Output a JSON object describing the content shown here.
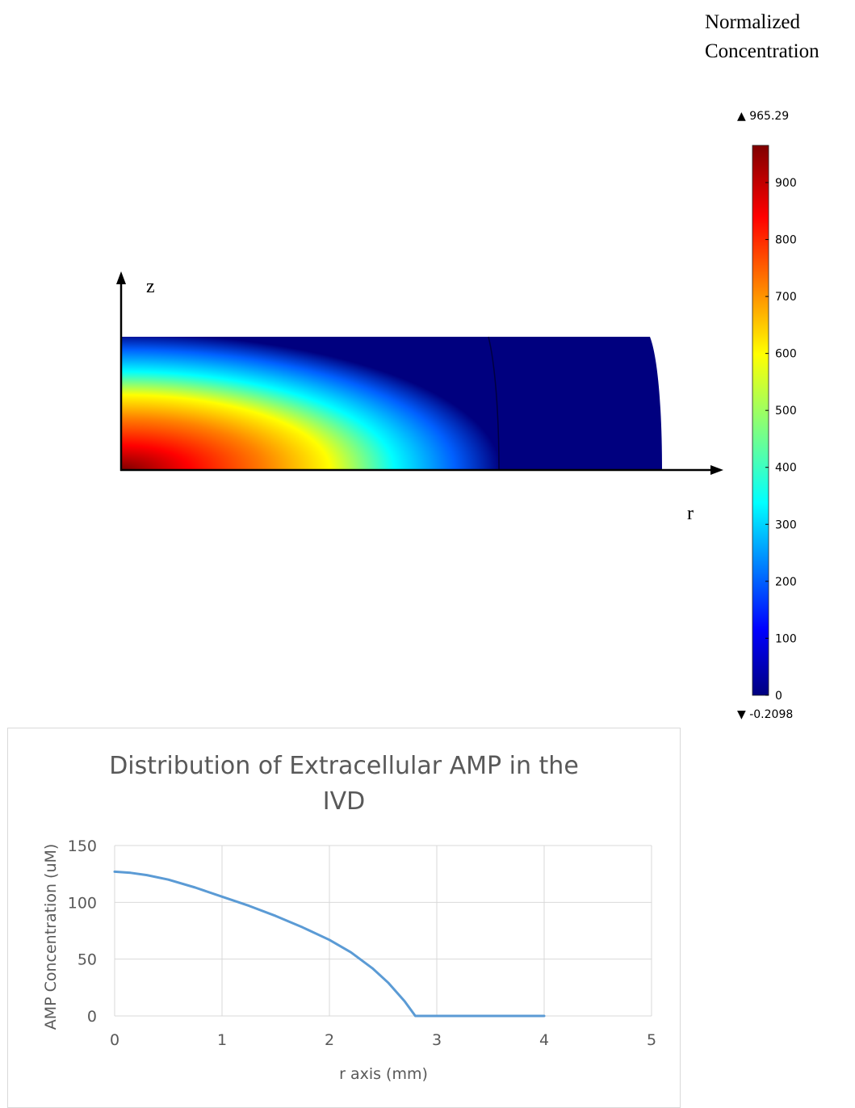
{
  "heatmap": {
    "legend_title_line1": "Normalized",
    "legend_title_line2": "Concentration",
    "axis_z_label": "z",
    "axis_r_label": "r",
    "colorbar_max_label": "▲ 965.29",
    "colorbar_min_label": "▼ -0.2098",
    "colorbar_max": 965.29,
    "colorbar_min": -0.2098,
    "colorbar_ticks": [
      0,
      100,
      200,
      300,
      400,
      500,
      600,
      700,
      800,
      900
    ],
    "colormap": "rainbow",
    "colors": [
      "#00007f",
      "#0000ff",
      "#00ffff",
      "#ffff00",
      "#ff0000",
      "#7f0000"
    ]
  },
  "chart_data": {
    "type": "line",
    "title_line1": "Distribution of Extracellular AMP in the",
    "title_line2": "IVD",
    "xlabel": "r axis (mm)",
    "ylabel": "AMP Concentration (uM)",
    "xlim": [
      0,
      5
    ],
    "ylim": [
      0,
      150
    ],
    "xticks": [
      0,
      1,
      2,
      3,
      4,
      5
    ],
    "yticks": [
      0,
      50,
      100,
      150
    ],
    "grid": true,
    "line_color": "#5b9bd5",
    "series": [
      {
        "x": [
          0,
          0.15,
          0.3,
          0.5,
          0.75,
          1.0,
          1.25,
          1.5,
          1.75,
          2.0,
          2.2,
          2.4,
          2.55,
          2.7,
          2.8,
          3.0,
          3.5,
          4.0
        ],
        "values": [
          127,
          126,
          124,
          120,
          113,
          105,
          97,
          88,
          78,
          67,
          56,
          42,
          29,
          13,
          0,
          0,
          0,
          0
        ]
      }
    ]
  }
}
